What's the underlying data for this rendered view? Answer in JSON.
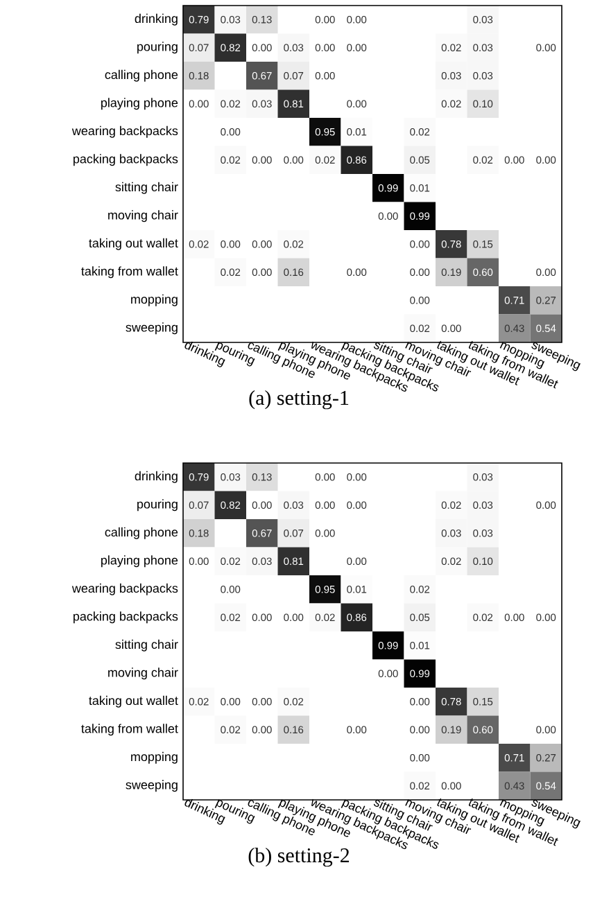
{
  "chart_data": [
    {
      "type": "heatmap",
      "title": "(a) setting-1",
      "data_labels": true,
      "categories": [
        "drinking",
        "pouring",
        "calling phone",
        "playing phone",
        "wearing backpacks",
        "packing backpacks",
        "sitting chair",
        "moving chair",
        "taking out wallet",
        "taking from wallet",
        "mopping",
        "sweeping"
      ],
      "y_categories": [
        "drinking",
        "pouring",
        "calling phone",
        "playing phone",
        "wearing backpacks",
        "packing backpacks",
        "sitting chair",
        "moving chair",
        "taking out wallet",
        "taking from wallet",
        "mopping",
        "sweeping"
      ],
      "cells": [
        [
          0.79,
          0.03,
          0.13,
          null,
          0.0,
          0.0,
          null,
          null,
          null,
          0.03,
          null,
          null
        ],
        [
          0.07,
          0.82,
          0.0,
          0.03,
          0.0,
          0.0,
          null,
          null,
          0.02,
          0.03,
          null,
          0.0
        ],
        [
          0.18,
          null,
          0.67,
          0.07,
          0.0,
          null,
          null,
          null,
          0.03,
          0.03,
          null,
          null
        ],
        [
          0.0,
          0.02,
          0.03,
          0.81,
          null,
          0.0,
          null,
          null,
          0.02,
          0.1,
          null,
          null
        ],
        [
          null,
          0.0,
          null,
          null,
          0.95,
          0.01,
          null,
          0.02,
          null,
          null,
          null,
          null
        ],
        [
          null,
          0.02,
          0.0,
          0.0,
          0.02,
          0.86,
          null,
          0.05,
          null,
          0.02,
          0.0,
          0.0
        ],
        [
          null,
          null,
          null,
          null,
          null,
          null,
          0.99,
          0.01,
          null,
          null,
          null,
          null
        ],
        [
          null,
          null,
          null,
          null,
          null,
          null,
          0.0,
          0.99,
          null,
          null,
          null,
          null
        ],
        [
          0.02,
          0.0,
          0.0,
          0.02,
          null,
          null,
          null,
          0.0,
          0.78,
          0.15,
          null,
          null
        ],
        [
          null,
          0.02,
          0.0,
          0.16,
          null,
          0.0,
          null,
          0.0,
          0.19,
          0.6,
          null,
          0.0
        ],
        [
          null,
          null,
          null,
          null,
          null,
          null,
          null,
          0.0,
          null,
          null,
          0.71,
          0.27
        ],
        [
          null,
          null,
          null,
          null,
          null,
          null,
          null,
          0.02,
          0.0,
          null,
          0.43,
          0.54
        ]
      ],
      "cell_labels": [
        [
          "0.79",
          "0.03",
          "0.13",
          null,
          "0.00",
          "0.00",
          null,
          null,
          null,
          "0.03",
          null,
          null
        ],
        [
          "0.07",
          "0.82",
          "0.00",
          "0.03",
          "0.00",
          "0.00",
          null,
          null,
          "0.02",
          "0.03",
          null,
          "0.00"
        ],
        [
          "0.18",
          null,
          "0.67",
          "0.07",
          "0.00",
          null,
          null,
          null,
          "0.03",
          "0.03",
          null,
          null
        ],
        [
          "0.00",
          "0.02",
          "0.03",
          "0.81",
          null,
          "0.00",
          null,
          null,
          "0.02",
          "0.10",
          null,
          null
        ],
        [
          null,
          "0.00",
          null,
          null,
          "0.95",
          "0.01",
          null,
          "0.02",
          null,
          null,
          null,
          null
        ],
        [
          null,
          "0.02",
          "0.00",
          "0.00",
          "0.02",
          "0.86",
          null,
          "0.05",
          null,
          "0.02",
          "0.00",
          "0.00"
        ],
        [
          null,
          null,
          null,
          null,
          null,
          null,
          "0.99",
          "0.01",
          null,
          null,
          null,
          null
        ],
        [
          null,
          null,
          null,
          null,
          null,
          null,
          "0.00",
          "0.99",
          null,
          null,
          null,
          null
        ],
        [
          "0.02",
          "0.00",
          "0.00",
          "0.02",
          null,
          null,
          null,
          "0.00",
          "0.78",
          "0.15",
          null,
          null
        ],
        [
          null,
          "0.02",
          "0.00",
          "0.16",
          null,
          "0.00",
          null,
          "0.00",
          "0.19",
          "0.60",
          null,
          "0.00"
        ],
        [
          null,
          null,
          null,
          null,
          null,
          null,
          null,
          "0.00",
          null,
          null,
          "0.71",
          "0.27"
        ],
        [
          null,
          null,
          null,
          null,
          null,
          null,
          null,
          "0.02",
          "0.00",
          null,
          "0.43",
          "0.54"
        ]
      ]
    },
    {
      "type": "heatmap",
      "title": "(b) setting-2",
      "data_labels": true,
      "categories": [
        "drinking",
        "pouring",
        "calling phone",
        "playing phone",
        "wearing backpacks",
        "packing backpacks",
        "sitting chair",
        "moving chair",
        "taking out wallet",
        "taking from wallet",
        "mopping",
        "sweeping"
      ],
      "y_categories": [
        "drinking",
        "pouring",
        "calling phone",
        "playing phone",
        "wearing backpacks",
        "packing backpacks",
        "sitting chair",
        "moving chair",
        "taking out wallet",
        "taking from wallet",
        "mopping",
        "sweeping"
      ],
      "cells": [
        [
          0.79,
          0.03,
          0.13,
          null,
          0.0,
          0.0,
          null,
          null,
          null,
          0.03,
          null,
          null
        ],
        [
          0.07,
          0.82,
          0.0,
          0.03,
          0.0,
          0.0,
          null,
          null,
          0.02,
          0.03,
          null,
          0.0
        ],
        [
          0.18,
          null,
          0.67,
          0.07,
          0.0,
          null,
          null,
          null,
          0.03,
          0.03,
          null,
          null
        ],
        [
          0.0,
          0.02,
          0.03,
          0.81,
          null,
          0.0,
          null,
          null,
          0.02,
          0.1,
          null,
          null
        ],
        [
          null,
          0.0,
          null,
          null,
          0.95,
          0.01,
          null,
          0.02,
          null,
          null,
          null,
          null
        ],
        [
          null,
          0.02,
          0.0,
          0.0,
          0.02,
          0.86,
          null,
          0.05,
          null,
          0.02,
          0.0,
          0.0
        ],
        [
          null,
          null,
          null,
          null,
          null,
          null,
          0.99,
          0.01,
          null,
          null,
          null,
          null
        ],
        [
          null,
          null,
          null,
          null,
          null,
          null,
          0.0,
          0.99,
          null,
          null,
          null,
          null
        ],
        [
          0.02,
          0.0,
          0.0,
          0.02,
          null,
          null,
          null,
          0.0,
          0.78,
          0.15,
          null,
          null
        ],
        [
          null,
          0.02,
          0.0,
          0.16,
          null,
          0.0,
          null,
          0.0,
          0.19,
          0.6,
          null,
          0.0
        ],
        [
          null,
          null,
          null,
          null,
          null,
          null,
          null,
          0.0,
          null,
          null,
          0.71,
          0.27
        ],
        [
          null,
          null,
          null,
          null,
          null,
          null,
          null,
          0.02,
          0.0,
          null,
          0.43,
          0.54
        ]
      ],
      "cell_labels": [
        [
          "0.79",
          "0.03",
          "0.13",
          null,
          "0.00",
          "0.00",
          null,
          null,
          null,
          "0.03",
          null,
          null
        ],
        [
          "0.07",
          "0.82",
          "0.00",
          "0.03",
          "0.00",
          "0.00",
          null,
          null,
          "0.02",
          "0.03",
          null,
          "0.00"
        ],
        [
          "0.18",
          null,
          "0.67",
          "0.07",
          "0.00",
          null,
          null,
          null,
          "0.03",
          "0.03",
          null,
          null
        ],
        [
          "0.00",
          "0.02",
          "0.03",
          "0.81",
          null,
          "0.00",
          null,
          null,
          "0.02",
          "0.10",
          null,
          null
        ],
        [
          null,
          "0.00",
          null,
          null,
          "0.95",
          "0.01",
          null,
          "0.02",
          null,
          null,
          null,
          null
        ],
        [
          null,
          "0.02",
          "0.00",
          "0.00",
          "0.02",
          "0.86",
          null,
          "0.05",
          null,
          "0.02",
          "0.00",
          "0.00"
        ],
        [
          null,
          null,
          null,
          null,
          null,
          null,
          "0.99",
          "0.01",
          null,
          null,
          null,
          null
        ],
        [
          null,
          null,
          null,
          null,
          null,
          null,
          "0.00",
          "0.99",
          null,
          null,
          null,
          null
        ],
        [
          "0.02",
          "0.00",
          "0.00",
          "0.02",
          null,
          null,
          null,
          "0.00",
          "0.78",
          "0.15",
          null,
          null
        ],
        [
          null,
          "0.02",
          "0.00",
          "0.16",
          null,
          "0.00",
          null,
          "0.00",
          "0.19",
          "0.60",
          null,
          "0.00"
        ],
        [
          null,
          null,
          null,
          null,
          null,
          null,
          null,
          "0.00",
          null,
          null,
          "0.71",
          "0.27"
        ],
        [
          null,
          null,
          null,
          null,
          null,
          null,
          null,
          "0.02",
          "0.00",
          null,
          "0.43",
          "0.54"
        ]
      ]
    }
  ]
}
